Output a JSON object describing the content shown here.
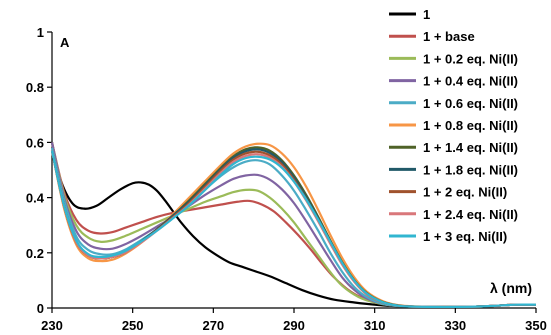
{
  "chart_data": {
    "type": "line",
    "panel_label": "A",
    "xlabel": "λ (nm)",
    "ylabel": "",
    "xlim": [
      230,
      350
    ],
    "ylim": [
      0,
      1
    ],
    "x_ticks": [
      "230",
      "250",
      "270",
      "290",
      "310",
      "330",
      "350"
    ],
    "y_ticks": [
      "0",
      "0.2",
      "0.4",
      "0.6",
      "0.8",
      "1"
    ],
    "grid": false,
    "legend_position": "right",
    "series": [
      {
        "name": "1",
        "color": "#000000",
        "x": [
          230,
          232,
          235,
          238,
          241,
          244,
          247,
          250,
          252,
          254,
          256,
          258,
          260,
          262,
          265,
          268,
          271,
          274,
          277,
          280,
          284,
          288,
          292,
          296,
          300,
          305,
          310,
          315,
          320,
          325,
          330,
          335,
          340,
          345,
          350
        ],
        "y": [
          0.6,
          0.47,
          0.38,
          0.36,
          0.37,
          0.4,
          0.43,
          0.452,
          0.455,
          0.447,
          0.425,
          0.39,
          0.35,
          0.31,
          0.26,
          0.22,
          0.19,
          0.165,
          0.15,
          0.135,
          0.115,
          0.09,
          0.065,
          0.045,
          0.03,
          0.02,
          0.012,
          0.007,
          0.005,
          0.004,
          0.004,
          0.005,
          0.008,
          0.012,
          0.012
        ]
      },
      {
        "name": "1 + base",
        "color": "#c0504d",
        "x": [
          230,
          233,
          236,
          239,
          242,
          245,
          248,
          252,
          256,
          260,
          264,
          268,
          272,
          276,
          279,
          282,
          285,
          288,
          291,
          294,
          297,
          300,
          304,
          308,
          312,
          316,
          320,
          325,
          330,
          335,
          340,
          345,
          350
        ],
        "y": [
          0.6,
          0.42,
          0.32,
          0.28,
          0.27,
          0.275,
          0.29,
          0.31,
          0.33,
          0.345,
          0.355,
          0.365,
          0.375,
          0.385,
          0.388,
          0.375,
          0.35,
          0.31,
          0.265,
          0.215,
          0.16,
          0.11,
          0.06,
          0.03,
          0.015,
          0.008,
          0.005,
          0.004,
          0.004,
          0.005,
          0.008,
          0.012,
          0.012
        ]
      },
      {
        "name": "1 + 0.2 eq. Ni(II)",
        "color": "#9bbb59",
        "x": [
          230,
          233,
          236,
          239,
          242,
          245,
          248,
          252,
          256,
          260,
          264,
          268,
          272,
          275,
          278,
          281,
          284,
          287,
          290,
          293,
          296,
          299,
          302,
          306,
          310,
          315,
          320,
          325,
          330,
          335,
          340,
          345,
          350
        ],
        "y": [
          0.6,
          0.41,
          0.3,
          0.255,
          0.24,
          0.245,
          0.26,
          0.285,
          0.31,
          0.335,
          0.36,
          0.385,
          0.405,
          0.42,
          0.428,
          0.425,
          0.4,
          0.36,
          0.31,
          0.25,
          0.19,
          0.13,
          0.08,
          0.04,
          0.02,
          0.008,
          0.005,
          0.004,
          0.004,
          0.005,
          0.008,
          0.012,
          0.012
        ]
      },
      {
        "name": "1 + 0.4 eq. Ni(II)",
        "color": "#8064a2",
        "x": [
          230,
          233,
          236,
          239,
          242,
          245,
          248,
          252,
          256,
          260,
          264,
          268,
          272,
          275,
          278,
          281,
          284,
          287,
          290,
          293,
          296,
          299,
          302,
          305,
          308,
          312,
          316,
          320,
          325,
          330,
          335,
          340,
          345,
          350
        ],
        "y": [
          0.6,
          0.4,
          0.28,
          0.23,
          0.215,
          0.215,
          0.23,
          0.26,
          0.295,
          0.33,
          0.37,
          0.41,
          0.445,
          0.468,
          0.48,
          0.482,
          0.465,
          0.43,
          0.38,
          0.315,
          0.245,
          0.175,
          0.11,
          0.065,
          0.035,
          0.015,
          0.007,
          0.005,
          0.004,
          0.004,
          0.005,
          0.008,
          0.012,
          0.012
        ]
      },
      {
        "name": "1 + 0.6 eq. Ni(II)",
        "color": "#4bacc6",
        "x": [
          230,
          233,
          236,
          239,
          242,
          245,
          248,
          252,
          256,
          260,
          264,
          268,
          272,
          275,
          278,
          281,
          284,
          287,
          290,
          293,
          296,
          299,
          302,
          305,
          308,
          312,
          316,
          320,
          325,
          330,
          335,
          340,
          345,
          350
        ],
        "y": [
          0.58,
          0.39,
          0.26,
          0.21,
          0.195,
          0.195,
          0.21,
          0.245,
          0.285,
          0.33,
          0.38,
          0.43,
          0.48,
          0.51,
          0.53,
          0.535,
          0.52,
          0.48,
          0.425,
          0.355,
          0.28,
          0.2,
          0.13,
          0.075,
          0.04,
          0.015,
          0.007,
          0.005,
          0.004,
          0.004,
          0.005,
          0.008,
          0.012,
          0.012
        ]
      },
      {
        "name": "1 + 0.8 eq. Ni(II)",
        "color": "#f79646",
        "x": [
          230,
          233,
          236,
          239,
          242,
          245,
          248,
          252,
          256,
          260,
          264,
          268,
          272,
          275,
          278,
          281,
          284,
          287,
          290,
          293,
          296,
          299,
          302,
          305,
          308,
          312,
          316,
          320,
          325,
          330,
          335,
          340,
          345,
          350
        ],
        "y": [
          0.57,
          0.36,
          0.23,
          0.18,
          0.17,
          0.175,
          0.195,
          0.235,
          0.285,
          0.34,
          0.4,
          0.46,
          0.52,
          0.56,
          0.585,
          0.595,
          0.59,
          0.56,
          0.51,
          0.44,
          0.355,
          0.265,
          0.18,
          0.11,
          0.06,
          0.025,
          0.01,
          0.006,
          0.004,
          0.004,
          0.005,
          0.008,
          0.012,
          0.012
        ]
      },
      {
        "name": "1 + 1.4 eq. Ni(II)",
        "color": "#4f6228",
        "x": [
          230,
          233,
          236,
          239,
          242,
          245,
          248,
          252,
          256,
          260,
          264,
          268,
          272,
          275,
          278,
          281,
          284,
          287,
          290,
          293,
          296,
          299,
          302,
          305,
          308,
          312,
          316,
          320,
          325,
          330,
          335,
          340,
          345,
          350
        ],
        "y": [
          0.57,
          0.37,
          0.24,
          0.19,
          0.18,
          0.185,
          0.2,
          0.24,
          0.285,
          0.335,
          0.39,
          0.45,
          0.51,
          0.55,
          0.575,
          0.582,
          0.57,
          0.535,
          0.48,
          0.41,
          0.33,
          0.245,
          0.165,
          0.1,
          0.055,
          0.022,
          0.009,
          0.005,
          0.004,
          0.004,
          0.005,
          0.008,
          0.012,
          0.012
        ]
      },
      {
        "name": "1 + 1.8 eq. Ni(II)",
        "color": "#215968",
        "x": [
          230,
          233,
          236,
          239,
          242,
          245,
          248,
          252,
          256,
          260,
          264,
          268,
          272,
          275,
          278,
          281,
          284,
          287,
          290,
          293,
          296,
          299,
          302,
          305,
          308,
          312,
          316,
          320,
          325,
          330,
          335,
          340,
          345,
          350
        ],
        "y": [
          0.57,
          0.37,
          0.24,
          0.19,
          0.18,
          0.185,
          0.2,
          0.24,
          0.285,
          0.335,
          0.385,
          0.445,
          0.505,
          0.545,
          0.568,
          0.575,
          0.562,
          0.528,
          0.472,
          0.402,
          0.323,
          0.24,
          0.16,
          0.097,
          0.052,
          0.02,
          0.008,
          0.005,
          0.004,
          0.004,
          0.005,
          0.008,
          0.012,
          0.012
        ]
      },
      {
        "name": "1 + 2 eq. Ni(II)",
        "color": "#a0522d",
        "x": [
          230,
          233,
          236,
          239,
          242,
          245,
          248,
          252,
          256,
          260,
          264,
          268,
          272,
          275,
          278,
          281,
          284,
          287,
          290,
          293,
          296,
          299,
          302,
          305,
          308,
          312,
          316,
          320,
          325,
          330,
          335,
          340,
          345,
          350
        ],
        "y": [
          0.57,
          0.37,
          0.24,
          0.19,
          0.18,
          0.185,
          0.2,
          0.238,
          0.282,
          0.33,
          0.38,
          0.44,
          0.5,
          0.538,
          0.56,
          0.566,
          0.553,
          0.52,
          0.465,
          0.395,
          0.318,
          0.236,
          0.158,
          0.095,
          0.05,
          0.02,
          0.008,
          0.005,
          0.004,
          0.004,
          0.005,
          0.008,
          0.012,
          0.012
        ]
      },
      {
        "name": "1 + 2.4 eq. Ni(II)",
        "color": "#d9777a",
        "x": [
          230,
          233,
          236,
          239,
          242,
          245,
          248,
          252,
          256,
          260,
          264,
          268,
          272,
          275,
          278,
          281,
          284,
          287,
          290,
          293,
          296,
          299,
          302,
          305,
          308,
          312,
          316,
          320,
          325,
          330,
          335,
          340,
          345,
          350
        ],
        "y": [
          0.57,
          0.37,
          0.24,
          0.19,
          0.18,
          0.185,
          0.2,
          0.236,
          0.28,
          0.326,
          0.375,
          0.433,
          0.492,
          0.53,
          0.551,
          0.557,
          0.545,
          0.512,
          0.458,
          0.39,
          0.314,
          0.233,
          0.156,
          0.094,
          0.05,
          0.02,
          0.008,
          0.005,
          0.004,
          0.004,
          0.005,
          0.008,
          0.012,
          0.012
        ]
      },
      {
        "name": "1 + 3 eq. Ni(II)",
        "color": "#31b6d0",
        "x": [
          230,
          233,
          236,
          239,
          242,
          245,
          248,
          252,
          256,
          260,
          264,
          268,
          272,
          275,
          278,
          281,
          284,
          287,
          290,
          293,
          296,
          299,
          302,
          305,
          308,
          312,
          316,
          320,
          325,
          330,
          335,
          340,
          345,
          350
        ],
        "y": [
          0.57,
          0.37,
          0.245,
          0.195,
          0.185,
          0.19,
          0.205,
          0.24,
          0.28,
          0.325,
          0.372,
          0.428,
          0.485,
          0.522,
          0.543,
          0.548,
          0.538,
          0.508,
          0.458,
          0.394,
          0.32,
          0.24,
          0.162,
          0.098,
          0.053,
          0.021,
          0.008,
          0.005,
          0.004,
          0.004,
          0.005,
          0.008,
          0.012,
          0.012
        ]
      }
    ]
  }
}
